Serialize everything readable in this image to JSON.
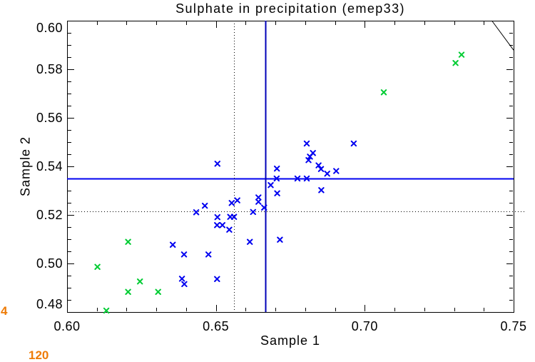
{
  "chart_data": {
    "type": "scatter",
    "title": "Sulphate in precipitation (emep33)",
    "xlabel": "Sample 1",
    "ylabel": "Sample 2",
    "xlim": [
      0.6,
      0.75
    ],
    "ylim": [
      0.48,
      0.6
    ],
    "grid": false,
    "legend": "none",
    "xticks": [
      {
        "value": 0.6,
        "label": "0.60"
      },
      {
        "value": 0.65,
        "label": "0.65"
      },
      {
        "value": 0.7,
        "label": "0.70"
      },
      {
        "value": 0.75,
        "label": "0.75"
      }
    ],
    "yticks": [
      {
        "value": 0.48,
        "label": "0.48"
      },
      {
        "value": 0.5,
        "label": "0.50"
      },
      {
        "value": 0.52,
        "label": "0.52"
      },
      {
        "value": 0.54,
        "label": "0.54"
      },
      {
        "value": 0.56,
        "label": "0.56"
      },
      {
        "value": 0.58,
        "label": "0.58"
      },
      {
        "value": 0.6,
        "label": "0.60"
      }
    ],
    "x_minor_step": 0.01,
    "y_minor_step": 0.005,
    "series": [
      {
        "name": "blue-crosses",
        "marker": "x",
        "color": "#0000f0",
        "points": [
          [
            0.6805,
            0.5494
          ],
          [
            0.6963,
            0.5494
          ],
          [
            0.6826,
            0.5455
          ],
          [
            0.6816,
            0.544
          ],
          [
            0.6811,
            0.5426
          ],
          [
            0.6505,
            0.5411
          ],
          [
            0.6845,
            0.5404
          ],
          [
            0.6705,
            0.5391
          ],
          [
            0.6853,
            0.5389
          ],
          [
            0.6904,
            0.5381
          ],
          [
            0.6874,
            0.537
          ],
          [
            0.6704,
            0.535
          ],
          [
            0.6774,
            0.535
          ],
          [
            0.6805,
            0.535
          ],
          [
            0.6684,
            0.5323
          ],
          [
            0.6854,
            0.5302
          ],
          [
            0.6706,
            0.5289
          ],
          [
            0.6643,
            0.5272
          ],
          [
            0.6572,
            0.526
          ],
          [
            0.6643,
            0.5254
          ],
          [
            0.6553,
            0.5249
          ],
          [
            0.6463,
            0.5238
          ],
          [
            0.6662,
            0.523
          ],
          [
            0.6625,
            0.5212
          ],
          [
            0.6434,
            0.5211
          ],
          [
            0.6548,
            0.5192
          ],
          [
            0.6561,
            0.5192
          ],
          [
            0.6505,
            0.5191
          ],
          [
            0.6504,
            0.5158
          ],
          [
            0.6522,
            0.5158
          ],
          [
            0.6545,
            0.5139
          ],
          [
            0.6715,
            0.5098
          ],
          [
            0.6614,
            0.5089
          ],
          [
            0.6355,
            0.5077
          ],
          [
            0.6393,
            0.5037
          ],
          [
            0.6475,
            0.5037
          ],
          [
            0.6386,
            0.4937
          ],
          [
            0.6504,
            0.4936
          ],
          [
            0.6394,
            0.4915
          ]
        ]
      },
      {
        "name": "green-crosses",
        "marker": "x",
        "color": "#00cc33",
        "points": [
          [
            0.7325,
            0.586
          ],
          [
            0.7305,
            0.5826
          ],
          [
            0.7064,
            0.5705
          ],
          [
            0.6205,
            0.5089
          ],
          [
            0.6102,
            0.4986
          ],
          [
            0.6245,
            0.4926
          ],
          [
            0.6205,
            0.4883
          ],
          [
            0.6306,
            0.4883
          ],
          [
            0.6132,
            0.4806
          ]
        ]
      }
    ],
    "reference_lines": [
      {
        "orientation": "horizontal",
        "value": 0.535,
        "style": "solid",
        "color": "#0000f0",
        "width": 2,
        "extend_right": 0
      },
      {
        "orientation": "horizontal",
        "value": 0.5215,
        "style": "dotted",
        "color": "#000000",
        "width": 1,
        "extend_right": 16
      },
      {
        "orientation": "vertical",
        "value": 0.6665,
        "style": "solid",
        "color": "#0000b8",
        "width": 2,
        "extend_right": 0
      },
      {
        "orientation": "vertical",
        "value": 0.656,
        "style": "dotted",
        "color": "#000000",
        "width": 1,
        "extend_right": 0
      }
    ],
    "corner_segment": {
      "x1": 0.7427,
      "y1": 0.6,
      "x2": 0.75,
      "y2": 0.5879,
      "color": "#000000"
    }
  },
  "annotations": {
    "left_number": "4",
    "bottom_number": "120",
    "color": "#ee7b06"
  }
}
